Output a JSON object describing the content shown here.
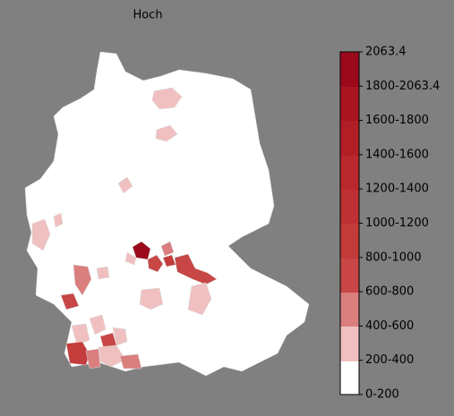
{
  "map": {
    "title": "Hoch",
    "legend": {
      "labels": [
        "2063.4",
        "1800-2063.4",
        "1600-1800",
        "1400-1600",
        "1200-1400",
        "1000-1200",
        "800-1000",
        "600-800",
        "400-600",
        "200-400",
        "0-200"
      ]
    }
  }
}
